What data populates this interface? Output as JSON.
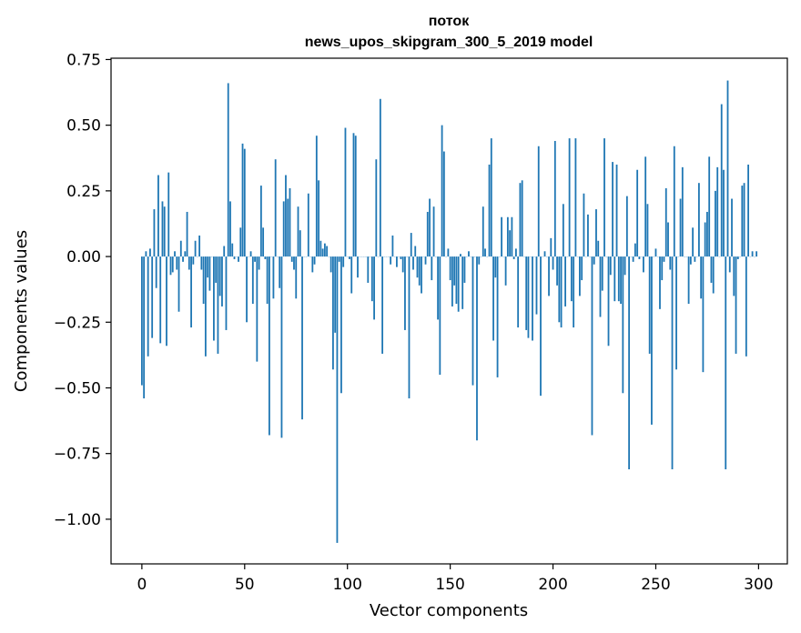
{
  "chart_data": {
    "type": "bar",
    "title_line1": "поток",
    "title_line2": "news_upos_skipgram_300_5_2019 model",
    "xlabel": "Vector components",
    "ylabel": "Components values",
    "xlim": [
      -15,
      314
    ],
    "ylim": [
      -1.17,
      0.755
    ],
    "x_ticks": [
      0,
      50,
      100,
      150,
      200,
      250,
      300
    ],
    "x_tick_labels": [
      "0",
      "50",
      "100",
      "150",
      "200",
      "250",
      "300"
    ],
    "y_ticks": [
      0.75,
      0.5,
      0.25,
      0.0,
      -0.25,
      -0.5,
      -0.75,
      -1.0
    ],
    "y_tick_labels": [
      "0.75",
      "0.50",
      "0.25",
      "0.00",
      "−0.25",
      "−0.50",
      "−0.75",
      "−1.00"
    ],
    "bar_color": "#1f77b4",
    "x": "0..299 (component index)",
    "values": [
      -0.49,
      -0.54,
      0.02,
      -0.38,
      0.03,
      -0.31,
      0.18,
      -0.12,
      0.31,
      -0.33,
      0.21,
      0.19,
      -0.34,
      0.32,
      -0.07,
      -0.06,
      0.02,
      -0.05,
      -0.21,
      0.06,
      -0.02,
      0.02,
      0.17,
      -0.05,
      -0.27,
      -0.03,
      0.06,
      0.0,
      0.08,
      -0.05,
      -0.18,
      -0.38,
      -0.08,
      -0.13,
      0.0,
      -0.32,
      -0.1,
      -0.37,
      -0.15,
      -0.19,
      0.04,
      -0.28,
      0.66,
      0.21,
      0.05,
      -0.01,
      0.0,
      -0.02,
      0.11,
      0.43,
      0.41,
      -0.25,
      0.0,
      0.02,
      -0.18,
      -0.02,
      -0.4,
      -0.05,
      0.27,
      0.11,
      -0.01,
      -0.18,
      -0.68,
      0.0,
      -0.16,
      0.37,
      0.0,
      -0.12,
      -0.69,
      0.21,
      0.31,
      0.22,
      0.26,
      -0.02,
      -0.05,
      -0.16,
      0.19,
      0.1,
      -0.62,
      0.0,
      0.0,
      0.24,
      0.0,
      -0.06,
      -0.03,
      0.46,
      0.29,
      0.06,
      0.03,
      0.05,
      0.04,
      0.0,
      -0.06,
      -0.43,
      -0.29,
      -1.09,
      -0.02,
      -0.52,
      -0.04,
      0.49,
      0.0,
      -0.01,
      -0.14,
      0.47,
      0.46,
      -0.08,
      0.0,
      0.0,
      0.0,
      0.0,
      -0.1,
      0.0,
      -0.17,
      -0.24,
      0.37,
      0.0,
      0.6,
      -0.37,
      0.0,
      0.0,
      0.0,
      -0.03,
      0.08,
      0.0,
      -0.04,
      0.0,
      -0.01,
      -0.06,
      -0.28,
      0.0,
      -0.54,
      0.09,
      -0.05,
      0.04,
      -0.08,
      -0.11,
      -0.14,
      0.0,
      -0.03,
      0.17,
      0.22,
      -0.09,
      0.19,
      0.0,
      -0.24,
      -0.45,
      0.5,
      0.4,
      0.0,
      0.03,
      -0.09,
      -0.19,
      -0.11,
      -0.18,
      -0.21,
      0.01,
      -0.2,
      -0.1,
      0.0,
      0.02,
      0.0,
      -0.49,
      0.0,
      -0.7,
      -0.03,
      0.0,
      0.19,
      0.03,
      0.0,
      0.35,
      0.45,
      -0.32,
      -0.08,
      -0.46,
      0.0,
      0.15,
      0.0,
      -0.11,
      0.15,
      0.1,
      0.15,
      -0.01,
      0.03,
      -0.27,
      0.28,
      0.29,
      0.0,
      -0.28,
      -0.31,
      0.0,
      -0.32,
      0.0,
      -0.22,
      0.42,
      -0.53,
      0.0,
      0.02,
      0.0,
      -0.15,
      0.07,
      -0.05,
      0.44,
      -0.11,
      -0.25,
      -0.27,
      0.2,
      -0.19,
      0.0,
      0.45,
      -0.17,
      -0.27,
      0.45,
      0.0,
      -0.15,
      -0.09,
      0.24,
      0.0,
      0.16,
      0.0,
      -0.68,
      -0.03,
      0.18,
      0.06,
      -0.23,
      -0.13,
      0.45,
      0.0,
      -0.34,
      -0.07,
      0.36,
      -0.17,
      0.35,
      -0.17,
      -0.18,
      -0.52,
      -0.07,
      0.23,
      -0.81,
      0.0,
      -0.02,
      0.05,
      0.33,
      -0.01,
      0.0,
      -0.06,
      0.38,
      0.2,
      -0.37,
      -0.64,
      0.0,
      0.03,
      0.0,
      -0.2,
      -0.09,
      -0.02,
      0.26,
      0.13,
      -0.05,
      -0.81,
      0.42,
      -0.43,
      0.0,
      0.22,
      0.34,
      0.0,
      0.0,
      -0.18,
      -0.03,
      0.11,
      -0.02,
      0.0,
      0.28,
      -0.16,
      -0.44,
      0.13,
      0.17,
      0.38,
      -0.1,
      -0.14,
      0.25,
      0.34,
      0.0,
      0.58,
      0.33,
      -0.81,
      0.67,
      -0.06,
      0.22,
      -0.15,
      -0.37,
      -0.01,
      0.0,
      0.27,
      0.28,
      -0.38,
      0.35,
      0.0,
      0.02,
      0.0,
      0.02
    ]
  }
}
